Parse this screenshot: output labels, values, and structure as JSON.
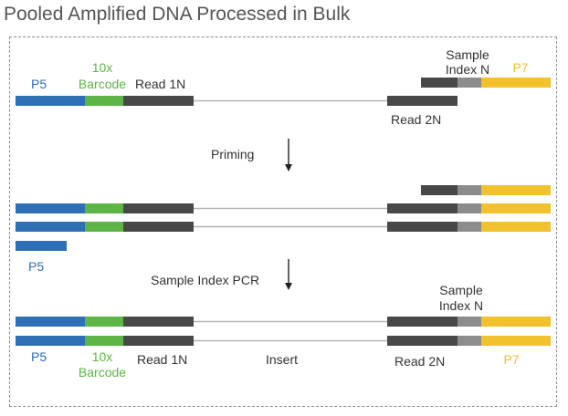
{
  "title": "Pooled Amplified DNA Processed in Bulk",
  "colors": {
    "p5": "#2e6fb5",
    "barcode": "#5cb544",
    "read": "#484848",
    "insert": "#b4b4b4",
    "index": "#8c8c8c",
    "p7": "#f2c12e",
    "text_dark": "#333333"
  },
  "labels": {
    "p5": "P5",
    "barcode_line1": "10x",
    "barcode_line2": "Barcode",
    "read1": "Read 1N",
    "read2": "Read 2N",
    "sample_line1": "Sample",
    "index_line2": "Index N",
    "p7": "P7",
    "insert": "Insert"
  },
  "steps": {
    "priming": "Priming",
    "sample_index_pcr": "Sample Index PCR"
  }
}
